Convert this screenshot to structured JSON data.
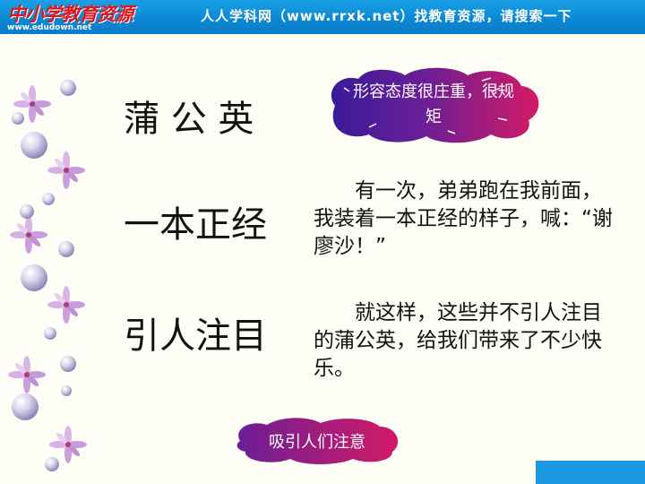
{
  "header": {
    "logo_text": "中小学教育资源",
    "logo_url": "www.edudown.net",
    "slogan": "人人学科网（www.rrxk.net）找教育资源，请搜索一下"
  },
  "rows": [
    {
      "term": "蒲  公  英",
      "badge_line1": "形容态度很庄重，很规",
      "badge_line2": "矩"
    },
    {
      "term": "一本正经",
      "para": "　　有一次，弟弟跑在我前面，我装着一本正经的样子，喊：“谢廖沙！”"
    },
    {
      "term": "引人注目",
      "para": "　　就这样，这些并不引人注目的蒲公英，给我们带来了不少快乐。",
      "badge_text": "吸引人们注意"
    }
  ],
  "colors": {
    "header_blue": "#0b86d4",
    "badge_purple": "#4a1d9e",
    "badge_magenta": "#c2186b"
  }
}
